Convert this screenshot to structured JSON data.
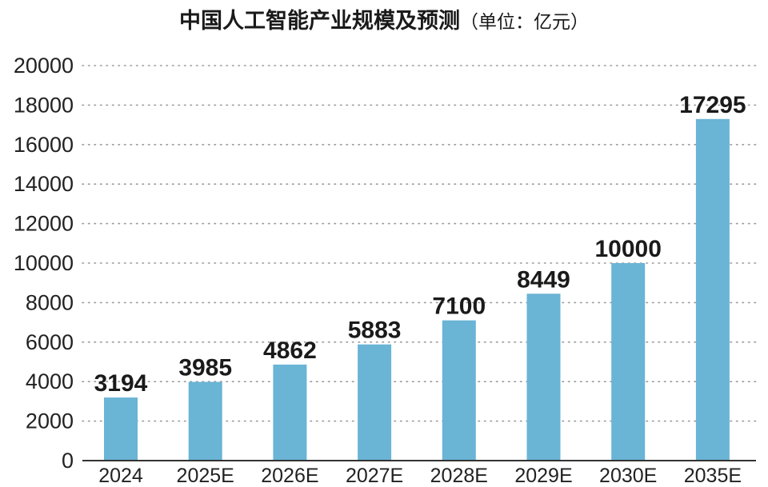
{
  "chart_data": {
    "type": "bar",
    "title": "中国人工智能产业规模及预测",
    "subtitle": "（单位：亿元）",
    "xlabel": "",
    "ylabel": "",
    "categories": [
      "2024",
      "2025E",
      "2026E",
      "2027E",
      "2028E",
      "2029E",
      "2030E",
      "2035E"
    ],
    "values": [
      3194,
      3985,
      4862,
      5883,
      7100,
      8449,
      10000,
      17295
    ],
    "data_labels": [
      "3194",
      "3985",
      "4862",
      "5883",
      "7100",
      "8449",
      "10000",
      "17295"
    ],
    "ylim": [
      0,
      20000
    ],
    "yticks": [
      "0",
      "2000",
      "4000",
      "6000",
      "8000",
      "10000",
      "12000",
      "14000",
      "16000",
      "18000",
      "20000"
    ],
    "grid": true,
    "legend": "none",
    "colors": {
      "bar": "#6ab4d6",
      "grid": "#9a9a9a",
      "text": "#1a1a1a"
    }
  }
}
